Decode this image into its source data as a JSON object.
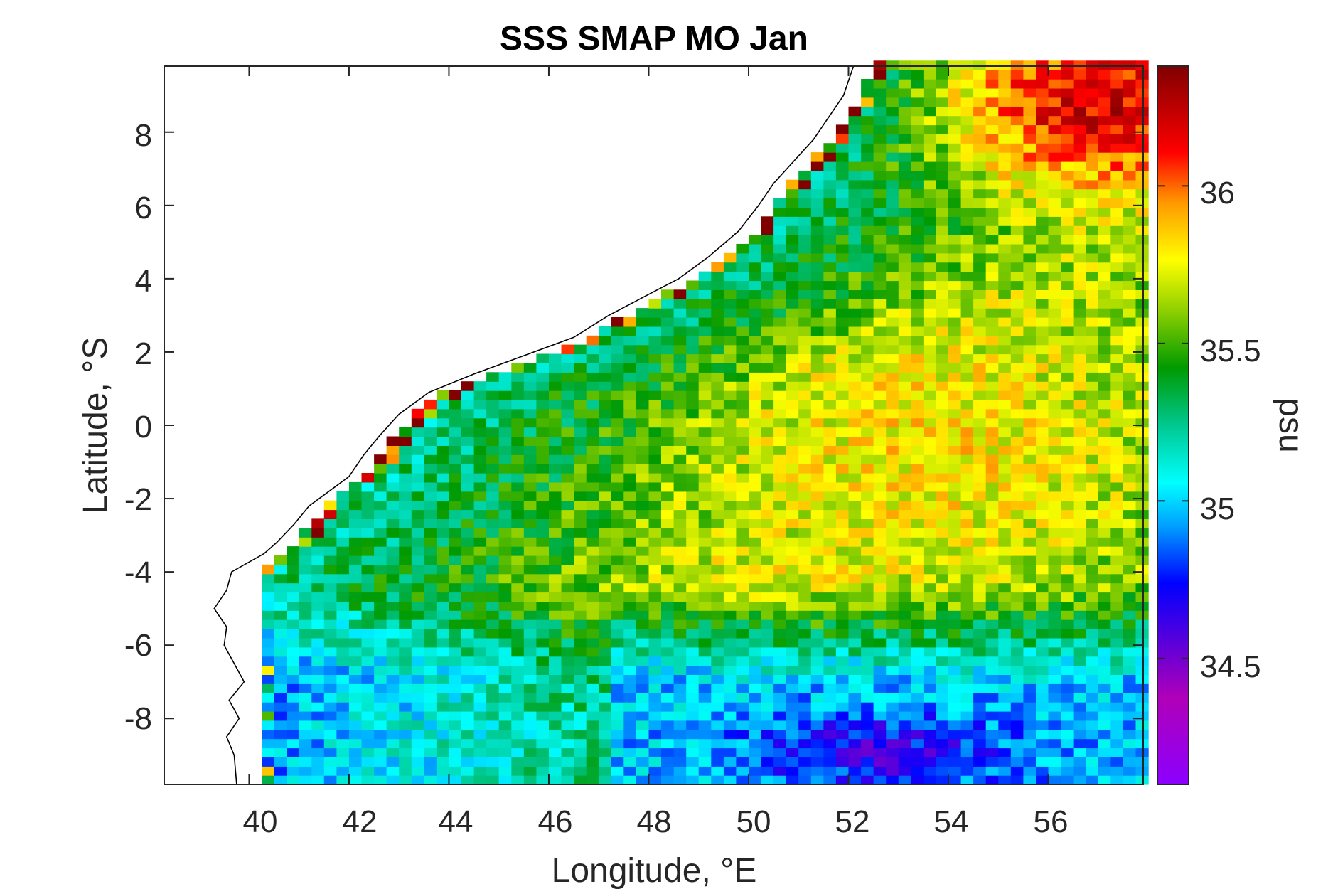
{
  "chart_data": {
    "type": "heatmap",
    "title": "SSS SMAP MO Jan",
    "xlabel": "Longitude, °E",
    "ylabel": "Latitude, °S",
    "colorbar_label": "psu",
    "xlim": [
      38.3,
      57.9
    ],
    "ylim": [
      -9.8,
      9.8
    ],
    "x_ticks": [
      40,
      42,
      44,
      46,
      48,
      50,
      52,
      54,
      56
    ],
    "y_ticks": [
      8,
      6,
      4,
      2,
      0,
      -2,
      -4,
      -6,
      -8
    ],
    "x_tick_labels": [
      "40",
      "42",
      "44",
      "46",
      "48",
      "50",
      "52",
      "54",
      "56"
    ],
    "y_tick_labels": [
      "8",
      "6",
      "4",
      "2",
      "0",
      "-2",
      "-4",
      "-6",
      "-8"
    ],
    "color_range": [
      34.1,
      36.38
    ],
    "colorbar_ticks": [
      36,
      35.5,
      35,
      34.5
    ],
    "colorbar_tick_labels": [
      "36",
      "35.5",
      "35",
      "34.5"
    ],
    "grid_resolution_deg": 0.25,
    "field_regions": [
      {
        "region": "northeast corner",
        "approx_value": 36.25
      },
      {
        "region": "upper eastern band",
        "approx_value": 35.95
      },
      {
        "region": "central interior",
        "approx_value": 35.75
      },
      {
        "region": "western shelf, 0 to -8 lat",
        "approx_value": 35.35
      },
      {
        "region": "southern band, -7 to -9.8 lat",
        "approx_value": 35.05
      },
      {
        "region": "southeast minimum near 52.5E -9S",
        "approx_value": 34.85
      }
    ],
    "colormap": [
      "#8b00ff",
      "#0000ff",
      "#00ffff",
      "#00aa00",
      "#ffff00",
      "#ff0000",
      "#800000"
    ],
    "coastline_color": "#000000"
  }
}
